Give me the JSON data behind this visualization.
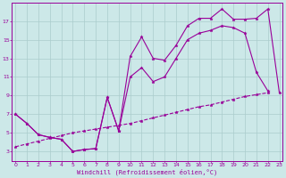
{
  "line1_x": [
    0,
    1,
    2,
    3,
    4,
    5,
    6,
    7,
    8,
    9,
    10,
    11,
    12,
    13,
    14,
    15,
    16,
    17,
    18,
    19,
    20,
    21,
    22,
    23
  ],
  "line1_y": [
    7.0,
    6.0,
    4.8,
    4.5,
    4.3,
    3.0,
    3.2,
    3.3,
    8.8,
    5.2,
    13.2,
    15.3,
    13.0,
    12.8,
    14.4,
    16.5,
    17.3,
    17.3,
    18.3,
    17.2,
    17.2,
    17.3,
    18.3,
    9.3
  ],
  "line2_x": [
    0,
    1,
    2,
    3,
    4,
    5,
    6,
    7,
    8,
    9,
    10,
    11,
    12,
    13,
    14,
    15,
    16,
    17,
    18,
    19,
    20,
    21,
    22,
    23
  ],
  "line2_y": [
    7.0,
    6.0,
    4.8,
    4.5,
    4.3,
    3.0,
    3.2,
    3.3,
    8.8,
    5.2,
    11.0,
    12.0,
    10.5,
    11.0,
    13.0,
    15.0,
    15.7,
    16.0,
    16.5,
    16.3,
    15.7,
    11.5,
    9.5,
    null
  ],
  "line3_x": [
    0,
    1,
    2,
    3,
    4,
    5,
    6,
    7,
    8,
    9,
    10,
    11,
    12,
    13,
    14,
    15,
    16,
    17,
    18,
    19,
    20,
    21,
    22,
    23
  ],
  "line3_y": [
    3.5,
    3.8,
    4.1,
    4.4,
    4.7,
    5.0,
    5.2,
    5.4,
    5.6,
    5.8,
    6.0,
    6.3,
    6.6,
    6.9,
    7.2,
    7.5,
    7.8,
    8.0,
    8.3,
    8.6,
    8.9,
    9.1,
    9.3,
    null
  ],
  "color": "#990099",
  "bg_color": "#cce8e8",
  "grid_color": "#aacccc",
  "xlim": [
    -0.3,
    23.3
  ],
  "ylim": [
    2.0,
    19.0
  ],
  "yticks": [
    3,
    5,
    7,
    9,
    11,
    13,
    15,
    17
  ],
  "xticks": [
    0,
    1,
    2,
    3,
    4,
    5,
    6,
    7,
    8,
    9,
    10,
    11,
    12,
    13,
    14,
    15,
    16,
    17,
    18,
    19,
    20,
    21,
    22,
    23
  ],
  "xlabel": "Windchill (Refroidissement éolien,°C)"
}
